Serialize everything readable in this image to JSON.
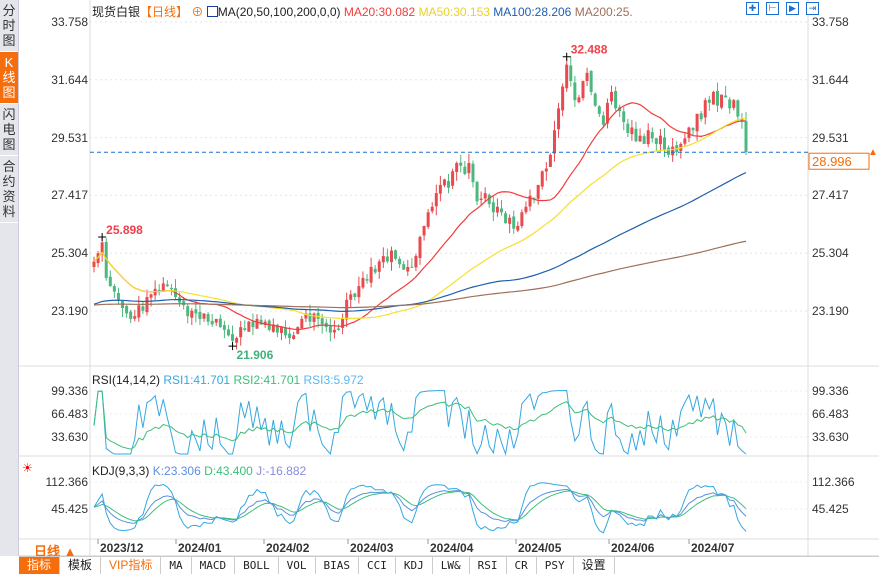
{
  "sidebar": {
    "items": [
      {
        "label": "分时图"
      },
      {
        "label": "K线图",
        "active": true
      },
      {
        "label": "闪电图"
      },
      {
        "label": "合约资料"
      }
    ]
  },
  "header": {
    "title": "现货白银",
    "period": "【日线】",
    "ma_label": "MA(20,50,100,200,0,0)",
    "ma20": "MA20:30.082",
    "ma50": "MA50:30.153",
    "ma100": "MA100:28.206",
    "ma200": "MA200:25."
  },
  "toolbar_icons": [
    "crosshair-icon",
    "zoom-range-icon",
    "play-icon",
    "exit-icon"
  ],
  "colors": {
    "up": "#e84a4f",
    "down": "#4cb87f",
    "ma20": "#f23c3c",
    "ma50": "#f5e02a",
    "ma100": "#1f5fb0",
    "ma200": "#a0705a",
    "accent": "#f56d0c",
    "rsi1": "#35a8e0",
    "rsi2": "#3cbf7a"
  },
  "rsi": {
    "label": "RSI(14,14,2)",
    "rsi1": "RSI1:41.701",
    "rsi2": "RSI2:41.701",
    "rsi3": "RSI3:5.972",
    "ticks": [
      "99.336",
      "66.483",
      "33.630"
    ]
  },
  "kdj": {
    "label": "KDJ(9,3,3)",
    "k": "K:23.306",
    "d": "D:43.400",
    "j": "J:-16.882",
    "ticks": [
      "112.366",
      "45.425"
    ]
  },
  "period_button": "日线 ▲",
  "bottom_tabs": [
    "指标",
    "模板",
    "VIP指标",
    "MA",
    "MACD",
    "BOLL",
    "VOL",
    "BIAS",
    "CCI",
    "KDJ",
    "LW&",
    "RSI",
    "CR",
    "PSY",
    "设置"
  ],
  "chart_data": {
    "type": "candlestick",
    "title": "现货白银 日线",
    "y_ticks": [
      "33.758",
      "31.644",
      "29.531",
      "27.417",
      "25.304",
      "23.190"
    ],
    "ylim": [
      23.19,
      33.758
    ],
    "x_ticks": [
      "2023/12",
      "2024/01",
      "2024/02",
      "2024/03",
      "2024/04",
      "2024/05",
      "2024/06",
      "2024/07"
    ],
    "last_price": "28.996",
    "high_label": "32.488",
    "low_label": "21.906",
    "early_high_label": "25.898",
    "closes": [
      25.0,
      25.3,
      25.7,
      24.4,
      24.1,
      23.9,
      23.6,
      23.3,
      23.1,
      22.9,
      23.0,
      23.4,
      23.2,
      23.7,
      23.8,
      24.0,
      23.9,
      24.2,
      24.1,
      24.0,
      23.7,
      23.5,
      23.4,
      23.0,
      23.2,
      23.1,
      22.9,
      23.1,
      22.8,
      22.7,
      22.9,
      22.6,
      22.5,
      22.3,
      22.1,
      22.2,
      22.6,
      22.5,
      22.8,
      22.6,
      22.9,
      22.7,
      22.8,
      22.5,
      22.7,
      22.4,
      22.6,
      22.3,
      22.2,
      22.3,
      22.6,
      22.9,
      23.1,
      22.8,
      23.1,
      22.9,
      22.7,
      22.6,
      22.4,
      22.5,
      22.5,
      22.9,
      23.6,
      23.8,
      23.7,
      24.1,
      24.4,
      24.3,
      24.8,
      24.6,
      25.0,
      25.2,
      25.0,
      25.4,
      25.1,
      24.9,
      24.7,
      24.8,
      24.8,
      25.2,
      25.9,
      26.3,
      26.8,
      27.0,
      27.5,
      27.8,
      28.0,
      27.7,
      28.3,
      28.6,
      28.5,
      28.2,
      28.6,
      27.9,
      27.2,
      27.3,
      27.5,
      27.1,
      26.8,
      27.0,
      26.8,
      26.4,
      26.6,
      26.2,
      26.3,
      26.8,
      27.0,
      27.4,
      27.3,
      27.8,
      28.3,
      28.4,
      28.9,
      29.8,
      30.6,
      31.4,
      32.2,
      31.6,
      30.9,
      31.0,
      31.6,
      31.9,
      31.2,
      30.7,
      30.4,
      30.0,
      30.8,
      31.2,
      30.6,
      30.5,
      30.1,
      29.7,
      29.9,
      29.4,
      29.6,
      29.3,
      29.8,
      29.5,
      29.3,
      29.6,
      29.1,
      28.9,
      29.2,
      29.0,
      29.3,
      29.5,
      29.9,
      29.8,
      30.4,
      30.2,
      30.9,
      30.8,
      31.2,
      30.7,
      31.1,
      31.0,
      30.6,
      30.9,
      30.3,
      30.1,
      29.0
    ]
  }
}
